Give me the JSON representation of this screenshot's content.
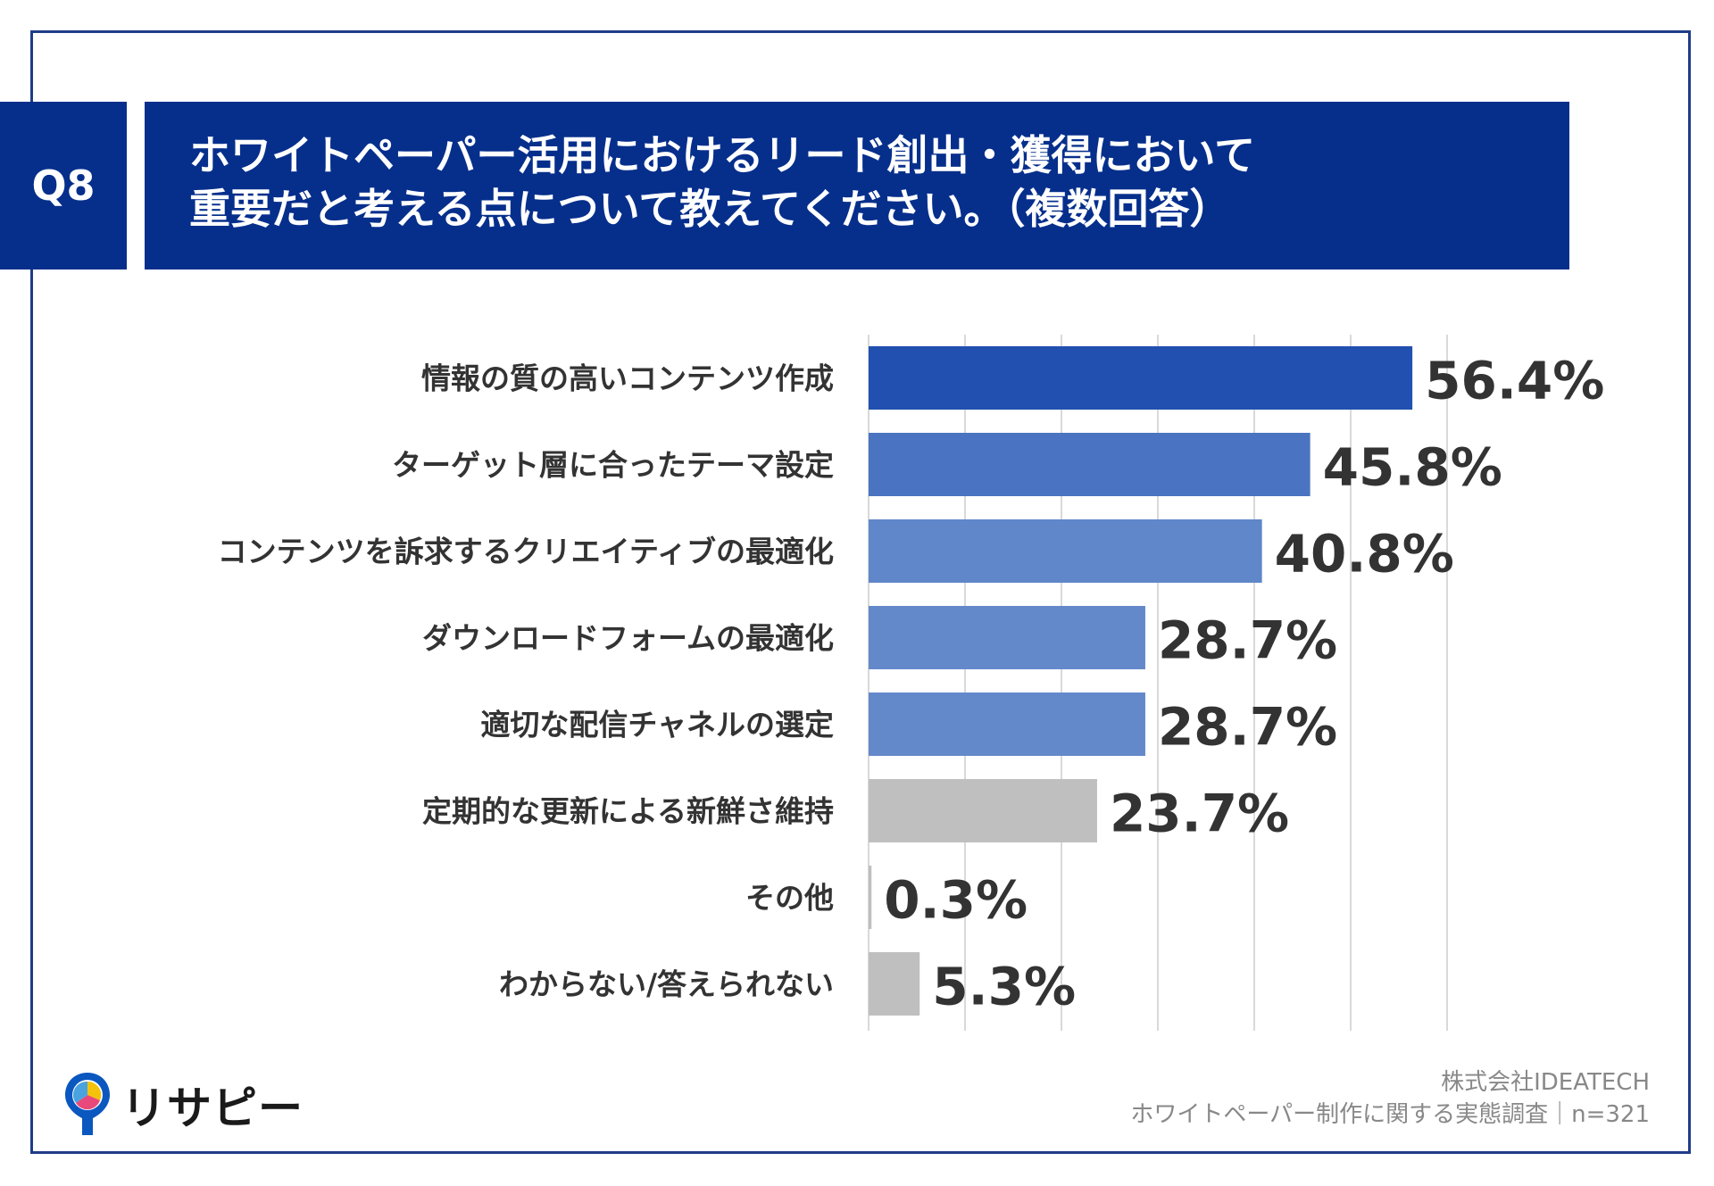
{
  "header": {
    "question_no": "Q8",
    "title_line1": "ホワイトペーパー活用におけるリード創出・獲得において",
    "title_line2": "重要だと考える点について教えてください。（複数回答）"
  },
  "chart_data": {
    "type": "bar",
    "orientation": "horizontal",
    "categories": [
      "情報の質の高いコンテンツ作成",
      "ターゲット層に合ったテーマ設定",
      "コンテンツを訴求するクリエイティブの最適化",
      "ダウンロードフォームの最適化",
      "適切な配信チャネルの選定",
      "定期的な更新による新鮮さ維持",
      "その他",
      "わからない/答えられない"
    ],
    "values": [
      56.4,
      45.8,
      40.8,
      28.7,
      28.7,
      23.7,
      0.3,
      5.3
    ],
    "value_labels": [
      "56.4%",
      "45.8%",
      "40.8%",
      "28.7%",
      "28.7%",
      "23.7%",
      "0.3%",
      "5.3%"
    ],
    "bar_colors": [
      "#2150b0",
      "#4a74c1",
      "#5f87c9",
      "#6389ca",
      "#6389ca",
      "#bfbfbf",
      "#bfbfbf",
      "#bfbfbf"
    ],
    "xlim": [
      0,
      60
    ],
    "grid": true,
    "grid_step": 10,
    "ylabel": "",
    "xlabel": ""
  },
  "footer": {
    "source_line1": "株式会社IDEATECH",
    "source_line2": "ホワイトペーパー制作に関する実態調査｜n=321",
    "logo_text": "リサピー"
  },
  "colors": {
    "header_bg": "#062f8c",
    "frame": "#1f3c88",
    "label_text": "#333333",
    "grid": "#d9d9d9"
  }
}
